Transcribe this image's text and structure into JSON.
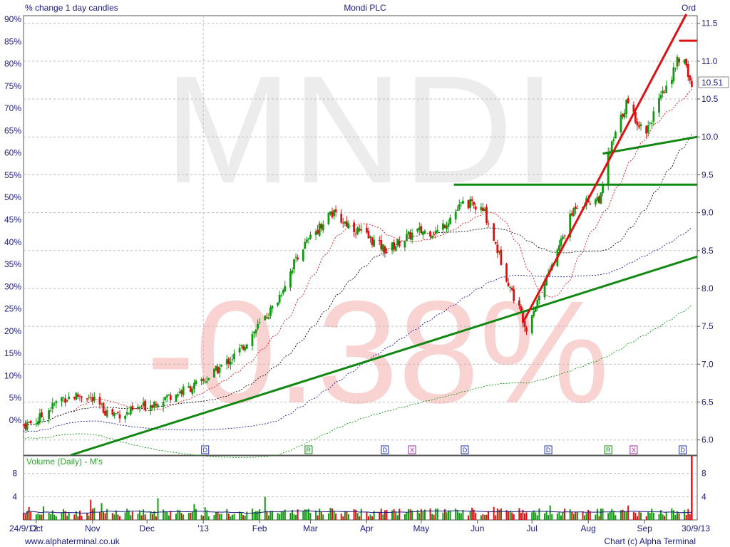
{
  "header": {
    "left_caption": "% change 1 day candles",
    "center_title": "Mondi PLC",
    "right_caption": "Ord"
  },
  "watermark": {
    "ticker": "MNDI",
    "change": "-0.38%"
  },
  "footer": {
    "website": "www.alphaterminal.co.uk",
    "credit": "Chart (c) Alpha Terminal"
  },
  "volume_panel": {
    "label": "Volume (Daily) - M's"
  },
  "colors": {
    "up_candle": "#119911",
    "down_candle": "#dd1111",
    "trend_green": "#118811",
    "trend_red": "#dd1111",
    "axis_text": "#1a1a80",
    "grid": "#bbbbbb",
    "watermark_gray": "#ececec",
    "watermark_red": "#f9d2d2"
  },
  "chart_data": {
    "type": "candlestick",
    "x_axis": {
      "start_label": "24/9/12",
      "end_label": "30/9/13",
      "month_labels": [
        "Oct",
        "Nov",
        "Dec",
        "'13",
        "Feb",
        "Mar",
        "Apr",
        "May",
        "Jun",
        "Jul",
        "Aug",
        "Sep"
      ]
    },
    "left_axis": {
      "unit": "% change",
      "ticks": [
        "90%",
        "85%",
        "80%",
        "75%",
        "70%",
        "65%",
        "60%",
        "55%",
        "50%",
        "45%",
        "40%",
        "35%",
        "30%",
        "25%",
        "20%",
        "15%",
        "10%",
        "5%",
        "0%"
      ]
    },
    "right_axis": {
      "unit": "price",
      "ticks": [
        "11.5",
        "11.0",
        "10.5",
        "10.0",
        "9.5",
        "9.0",
        "8.5",
        "8.0",
        "7.5",
        "7.0",
        "6.5",
        "6.0"
      ],
      "ylim": [
        5.8,
        11.6
      ],
      "last_price": "10.51"
    },
    "price_series": {
      "months": [
        "Oct",
        "Nov",
        "Dec",
        "Jan",
        "Feb",
        "Mar",
        "Apr",
        "May",
        "Jun",
        "Jul",
        "Aug",
        "Sep"
      ],
      "close": [
        6.55,
        6.35,
        6.55,
        7.15,
        8.45,
        9.0,
        8.7,
        9.05,
        7.7,
        9.15,
        10.45,
        10.51
      ]
    },
    "events": [
      {
        "label": "D",
        "date": "2013-01-02"
      },
      {
        "label": "R",
        "date": "2013-02-28"
      },
      {
        "label": "D",
        "date": "2013-04-11"
      },
      {
        "label": "X",
        "date": "2013-04-26"
      },
      {
        "label": "D",
        "date": "2013-05-25"
      },
      {
        "label": "D",
        "date": "2013-07-10"
      },
      {
        "label": "R",
        "date": "2013-08-12"
      },
      {
        "label": "X",
        "date": "2013-08-26"
      },
      {
        "label": "D",
        "date": "2013-09-22"
      }
    ],
    "volume_axis": {
      "ticks": [
        "8",
        "4"
      ],
      "ylim": [
        0,
        11
      ]
    },
    "volume_spike": {
      "date": "2013-09-27",
      "value": 11
    }
  }
}
